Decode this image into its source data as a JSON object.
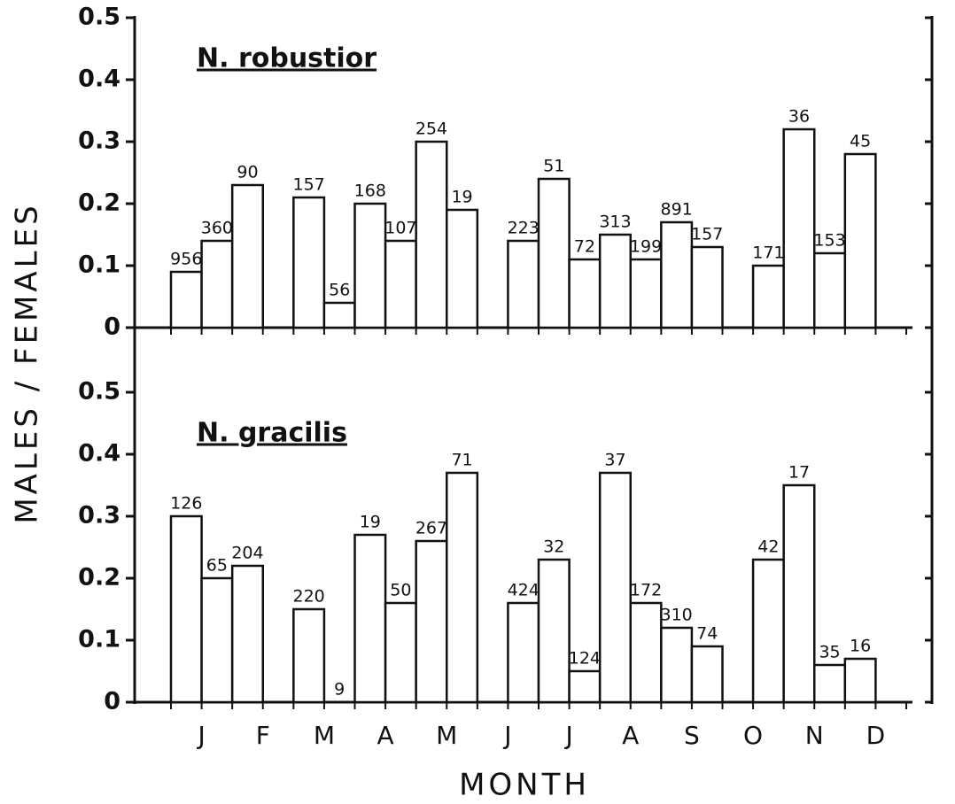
{
  "chart_data": [
    {
      "type": "bar",
      "title": "N. robustior",
      "values": [
        0.09,
        0.14,
        0.23,
        null,
        0.21,
        0.04,
        0.2,
        0.14,
        0.3,
        0.19,
        null,
        0.14,
        0.24,
        0.11,
        0.15,
        0.11,
        0.17,
        0.13,
        null,
        0.1,
        0.32,
        0.12,
        0.28,
        null
      ],
      "sample_sizes": [
        "956",
        "360",
        "90",
        null,
        "157",
        "56",
        "168",
        "107",
        "254",
        "19",
        null,
        "223",
        "51",
        "72",
        "313",
        "199",
        "891",
        "157",
        null,
        "171",
        "36",
        "153",
        "45",
        null
      ],
      "ylim": [
        0,
        0.5
      ],
      "yticks": [
        0,
        0.1,
        0.2,
        0.3,
        0.4,
        0.5
      ],
      "color": "#ffffff"
    },
    {
      "type": "bar",
      "title": "N. gracilis",
      "categories": [
        "J",
        null,
        "F",
        null,
        "M",
        null,
        "A",
        null,
        "M",
        null,
        "J",
        null,
        "J",
        null,
        "A",
        null,
        "S",
        null,
        "O",
        null,
        "N",
        null,
        "D",
        null
      ],
      "values": [
        0.3,
        0.2,
        0.22,
        null,
        0.15,
        0,
        0.27,
        0.16,
        0.26,
        0.37,
        null,
        0.16,
        0.23,
        0.05,
        0.37,
        0.16,
        0.12,
        0.09,
        null,
        0.23,
        0.35,
        0.06,
        0.07,
        null
      ],
      "sample_sizes": [
        "126",
        "65",
        "204",
        null,
        "220",
        "9",
        "19",
        "50",
        "267",
        "71",
        null,
        "424",
        "32",
        "124",
        "37",
        "172",
        "310",
        "74",
        null,
        "42",
        "17",
        "35",
        "16",
        null
      ],
      "ylim": [
        0,
        0.5
      ],
      "yticks": [
        0,
        0.1,
        0.2,
        0.3,
        0.4,
        0.5
      ],
      "color": "#ffffff",
      "x_label": "MONTH"
    }
  ],
  "y_label": "MALES / FEMALES"
}
